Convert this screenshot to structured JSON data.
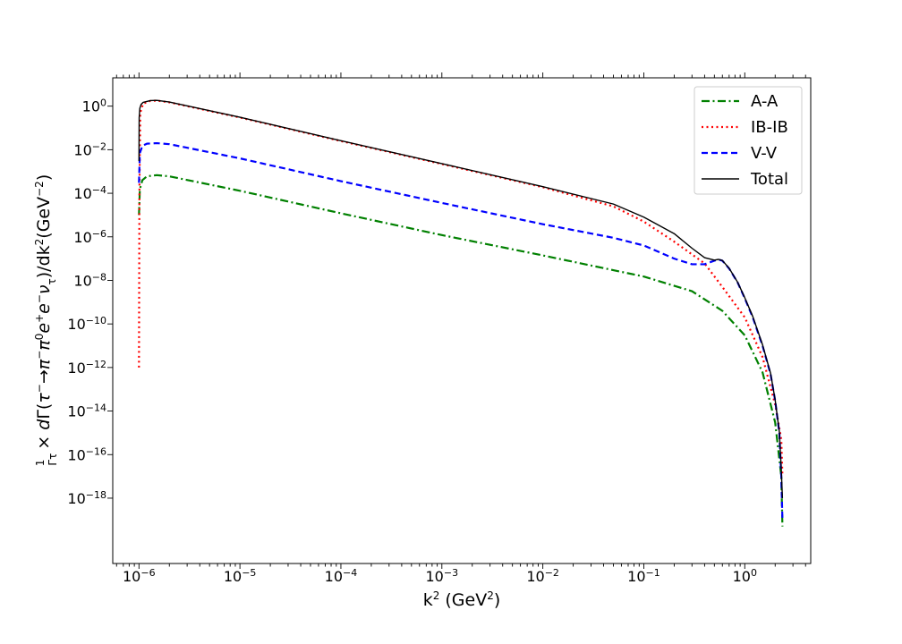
{
  "chart_data": {
    "type": "line",
    "xscale": "log",
    "yscale": "log",
    "xlim": [
      5.5e-07,
      4.5
    ],
    "ylim": [
      1e-21,
      20
    ],
    "xlabel": "k² (GeV²)",
    "ylabel": "1/Γτ × dΓ(τ⁻→π⁻π⁰e⁺e⁻ντ)/dk² (GeV⁻²)",
    "x_ticks": [
      {
        "base": "10",
        "exp": "−6",
        "value": 1e-06
      },
      {
        "base": "10",
        "exp": "−5",
        "value": 1e-05
      },
      {
        "base": "10",
        "exp": "−4",
        "value": 0.0001
      },
      {
        "base": "10",
        "exp": "−3",
        "value": 0.001
      },
      {
        "base": "10",
        "exp": "−2",
        "value": 0.01
      },
      {
        "base": "10",
        "exp": "−1",
        "value": 0.1
      },
      {
        "base": "10",
        "exp": "0",
        "value": 1
      }
    ],
    "y_ticks": [
      {
        "base": "10",
        "exp": "0",
        "value": 1
      },
      {
        "base": "10",
        "exp": "−2",
        "value": 0.01
      },
      {
        "base": "10",
        "exp": "−4",
        "value": 0.0001
      },
      {
        "base": "10",
        "exp": "−6",
        "value": 1e-06
      },
      {
        "base": "10",
        "exp": "−8",
        "value": 1e-08
      },
      {
        "base": "10",
        "exp": "−10",
        "value": 1e-10
      },
      {
        "base": "10",
        "exp": "−12",
        "value": 1e-12
      },
      {
        "base": "10",
        "exp": "−14",
        "value": 1e-14
      },
      {
        "base": "10",
        "exp": "−16",
        "value": 1e-16
      },
      {
        "base": "10",
        "exp": "−18",
        "value": 1e-18
      }
    ],
    "legend_position": "top-right",
    "grid": false,
    "series": [
      {
        "name": "A-A",
        "color": "#008000",
        "style": "dashdot",
        "x": [
          1e-06,
          1.02e-06,
          1.08e-06,
          1.2e-06,
          1.5e-06,
          2e-06,
          1e-05,
          0.0001,
          0.001,
          0.01,
          0.1,
          0.3,
          0.6,
          1.0,
          1.5,
          2.0,
          2.3,
          2.36
        ],
        "y": [
          1e-05,
          0.00015,
          0.0004,
          0.0006,
          0.00068,
          0.0006,
          0.00013,
          1.2e-05,
          1.2e-06,
          1.4e-07,
          1.5e-08,
          3.2e-09,
          4e-10,
          3e-11,
          6e-13,
          3e-15,
          1e-17,
          5e-20
        ]
      },
      {
        "name": "IB-IB",
        "color": "#ff0000",
        "style": "dotted",
        "x": [
          1e-06,
          1.005e-06,
          1.01e-06,
          1.03e-06,
          1.1e-06,
          1.3e-06,
          1.5e-06,
          2e-06,
          1e-05,
          0.0001,
          0.001,
          0.01,
          0.05,
          0.1,
          0.2,
          0.4,
          0.6,
          1.0,
          1.5,
          2.0,
          2.3,
          2.36
        ],
        "y": [
          1e-12,
          1e-08,
          0.0001,
          0.5,
          1.3,
          1.75,
          1.8,
          1.5,
          0.3,
          0.025,
          0.0022,
          0.00019,
          2.5e-05,
          5e-06,
          6e-07,
          6e-08,
          5e-09,
          2e-10,
          3e-12,
          2e-14,
          5e-16,
          1e-17
        ]
      },
      {
        "name": "V-V",
        "color": "#0000ff",
        "style": "dashed",
        "x": [
          1e-06,
          1.02e-06,
          1.08e-06,
          1.2e-06,
          1.5e-06,
          2e-06,
          1e-05,
          0.0001,
          0.001,
          0.01,
          0.05,
          0.1,
          0.2,
          0.3,
          0.4,
          0.5,
          0.55,
          0.6,
          0.7,
          0.85,
          1.0,
          1.2,
          1.5,
          1.8,
          2.0,
          2.2,
          2.3,
          2.36
        ],
        "y": [
          0.0003,
          0.007,
          0.015,
          0.019,
          0.02,
          0.018,
          0.004,
          0.00036,
          3.6e-05,
          3.8e-06,
          9e-07,
          4e-07,
          1e-07,
          5.5e-08,
          5.5e-08,
          8e-08,
          9e-08,
          8e-08,
          3.5e-08,
          8e-09,
          1.5e-09,
          2e-10,
          1e-11,
          5e-13,
          3e-14,
          1e-15,
          1e-17,
          1e-19
        ]
      },
      {
        "name": "Total",
        "color": "#000000",
        "style": "solid",
        "x": [
          1e-06,
          1.005e-06,
          1.02e-06,
          1.05e-06,
          1.1e-06,
          1.3e-06,
          1.5e-06,
          2e-06,
          1e-05,
          0.0001,
          0.001,
          0.01,
          0.05,
          0.1,
          0.2,
          0.3,
          0.4,
          0.5,
          0.55,
          0.6,
          0.7,
          0.85,
          1.0,
          1.2,
          1.5,
          1.8,
          2.0,
          2.2,
          2.3,
          2.36
        ],
        "y": [
          0.003,
          0.3,
          0.8,
          1.2,
          1.5,
          1.8,
          1.85,
          1.55,
          0.31,
          0.026,
          0.0023,
          0.0002,
          3.2e-05,
          8e-06,
          1.4e-06,
          3e-07,
          1.1e-07,
          8.5e-08,
          9.2e-08,
          8.2e-08,
          3.6e-08,
          8.2e-09,
          1.6e-09,
          2.2e-10,
          1.1e-11,
          5.5e-13,
          3.2e-14,
          1.1e-15,
          2e-17,
          1e-18
        ]
      }
    ]
  }
}
